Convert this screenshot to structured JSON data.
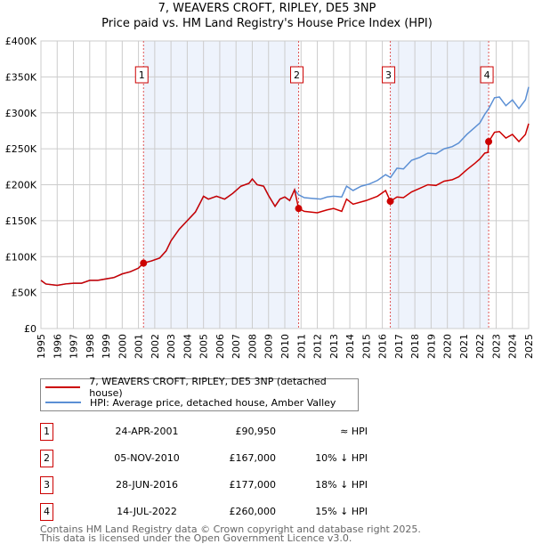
{
  "chart_data": {
    "type": "line",
    "title": "7, WEAVERS CROFT, RIPLEY, DE5 3NP",
    "subtitle": "Price paid vs. HM Land Registry's House Price Index (HPI)",
    "xlim": [
      1995,
      2025
    ],
    "ylim": [
      0,
      400000
    ],
    "yticks": [
      0,
      50000,
      100000,
      150000,
      200000,
      250000,
      300000,
      350000,
      400000
    ],
    "ytick_labels": [
      "£0",
      "£50K",
      "£100K",
      "£150K",
      "£200K",
      "£250K",
      "£300K",
      "£350K",
      "£400K"
    ],
    "xticks": [
      1995,
      1996,
      1997,
      1998,
      1999,
      2000,
      2001,
      2002,
      2003,
      2004,
      2005,
      2006,
      2007,
      2008,
      2009,
      2010,
      2011,
      2012,
      2013,
      2014,
      2015,
      2016,
      2017,
      2018,
      2019,
      2020,
      2021,
      2022,
      2023,
      2024,
      2025
    ],
    "grid": true,
    "shaded_periods": [
      [
        2001.31,
        2010.85
      ],
      [
        2016.49,
        2022.54
      ]
    ],
    "series": [
      {
        "name": "HPI: Average price, detached house, Amber Valley",
        "color": "#5b8fd4",
        "x": [
          1995,
          1995.3,
          1996,
          1996.5,
          1997,
          1997.5,
          1998,
          1998.5,
          1999,
          1999.5,
          2000,
          2000.5,
          2001,
          2001.3,
          2001.8,
          2002.3,
          2002.7,
          2003,
          2003.5,
          2004,
          2004.5,
          2004.8,
          2005,
          2005.3,
          2005.8,
          2006.3,
          2006.8,
          2007.3,
          2007.8,
          2008,
          2008.3,
          2008.7,
          2009,
          2009.4,
          2009.7,
          2010,
          2010.3,
          2010.6,
          2010.85,
          2011.2,
          2011.7,
          2012.2,
          2012.6,
          2013,
          2013.5,
          2013.8,
          2014.2,
          2014.7,
          2015.2,
          2015.7,
          2016.2,
          2016.5,
          2016.9,
          2017.3,
          2017.8,
          2018.3,
          2018.8,
          2019.3,
          2019.8,
          2020.3,
          2020.7,
          2021.2,
          2021.7,
          2022,
          2022.3,
          2022.55,
          2022.9,
          2023.2,
          2023.6,
          2024,
          2024.4,
          2024.8,
          2025
        ],
        "y": [
          67000,
          62000,
          60000,
          62000,
          63000,
          63000,
          67000,
          67000,
          69000,
          71000,
          76000,
          79000,
          84000,
          91000,
          94000,
          98000,
          108000,
          122000,
          138000,
          150000,
          162000,
          175000,
          184000,
          180000,
          184000,
          180000,
          188000,
          198000,
          202000,
          208000,
          200000,
          198000,
          185000,
          170000,
          180000,
          183000,
          178000,
          193000,
          186000,
          182000,
          181000,
          180000,
          183000,
          184000,
          183000,
          198000,
          192000,
          198000,
          201000,
          206000,
          214000,
          210000,
          223000,
          222000,
          234000,
          238000,
          244000,
          243000,
          250000,
          253000,
          258000,
          270000,
          280000,
          286000,
          298000,
          306000,
          321000,
          322000,
          310000,
          318000,
          306000,
          318000,
          336000
        ]
      },
      {
        "name": "7, WEAVERS CROFT, RIPLEY, DE5 3NP (detached house)",
        "color": "#cc0000",
        "x": [
          1995,
          1995.3,
          1996,
          1996.5,
          1997,
          1997.5,
          1998,
          1998.5,
          1999,
          1999.5,
          2000,
          2000.5,
          2001,
          2001.3,
          2001.8,
          2002.3,
          2002.7,
          2003,
          2003.5,
          2004,
          2004.5,
          2004.8,
          2005,
          2005.3,
          2005.8,
          2006.3,
          2006.8,
          2007.3,
          2007.8,
          2008,
          2008.3,
          2008.7,
          2009,
          2009.4,
          2009.7,
          2010,
          2010.3,
          2010.6,
          2010.85,
          2011.2,
          2012,
          2012.6,
          2013,
          2013.5,
          2013.8,
          2014.2,
          2015,
          2015.7,
          2016.2,
          2016.49,
          2016.9,
          2017.3,
          2017.8,
          2018.3,
          2018.8,
          2019.3,
          2019.8,
          2020.3,
          2020.7,
          2021.2,
          2021.7,
          2022,
          2022.3,
          2022.5,
          2022.54,
          2022.9,
          2023.2,
          2023.6,
          2024,
          2024.4,
          2024.8,
          2025
        ],
        "y": [
          67000,
          62000,
          60000,
          62000,
          63000,
          63000,
          67000,
          67000,
          69000,
          71000,
          76000,
          79000,
          84000,
          91000,
          94000,
          98000,
          108000,
          122000,
          138000,
          150000,
          162000,
          175000,
          184000,
          180000,
          184000,
          180000,
          188000,
          198000,
          202000,
          208000,
          200000,
          198000,
          185000,
          170000,
          180000,
          183000,
          178000,
          193000,
          167000,
          163000,
          161000,
          165000,
          167000,
          163000,
          180000,
          173000,
          178000,
          184000,
          192000,
          177000,
          183000,
          182000,
          190000,
          195000,
          200000,
          199000,
          205000,
          207000,
          211000,
          221000,
          230000,
          236000,
          244000,
          245000,
          260000,
          273000,
          274000,
          265000,
          270000,
          260000,
          270000,
          285000
        ]
      }
    ],
    "sales": [
      {
        "n": "1",
        "x": 2001.31,
        "date": "24-APR-2001",
        "price": 90950,
        "price_label": "£90,950",
        "rel": "≈ HPI"
      },
      {
        "n": "2",
        "x": 2010.85,
        "date": "05-NOV-2010",
        "price": 167000,
        "price_label": "£167,000",
        "rel": "10% ↓ HPI"
      },
      {
        "n": "3",
        "x": 2016.49,
        "date": "28-JUN-2016",
        "price": 177000,
        "price_label": "£177,000",
        "rel": "18% ↓ HPI"
      },
      {
        "n": "4",
        "x": 2022.54,
        "date": "14-JUL-2022",
        "price": 260000,
        "price_label": "£260,000",
        "rel": "15% ↓ HPI"
      }
    ]
  },
  "legend": {
    "property": "7, WEAVERS CROFT, RIPLEY, DE5 3NP (detached house)",
    "hpi": "HPI: Average price, detached house, Amber Valley"
  },
  "footer": {
    "line1": "Contains HM Land Registry data © Crown copyright and database right 2025.",
    "line2": "This data is licensed under the Open Government Licence v3.0."
  }
}
